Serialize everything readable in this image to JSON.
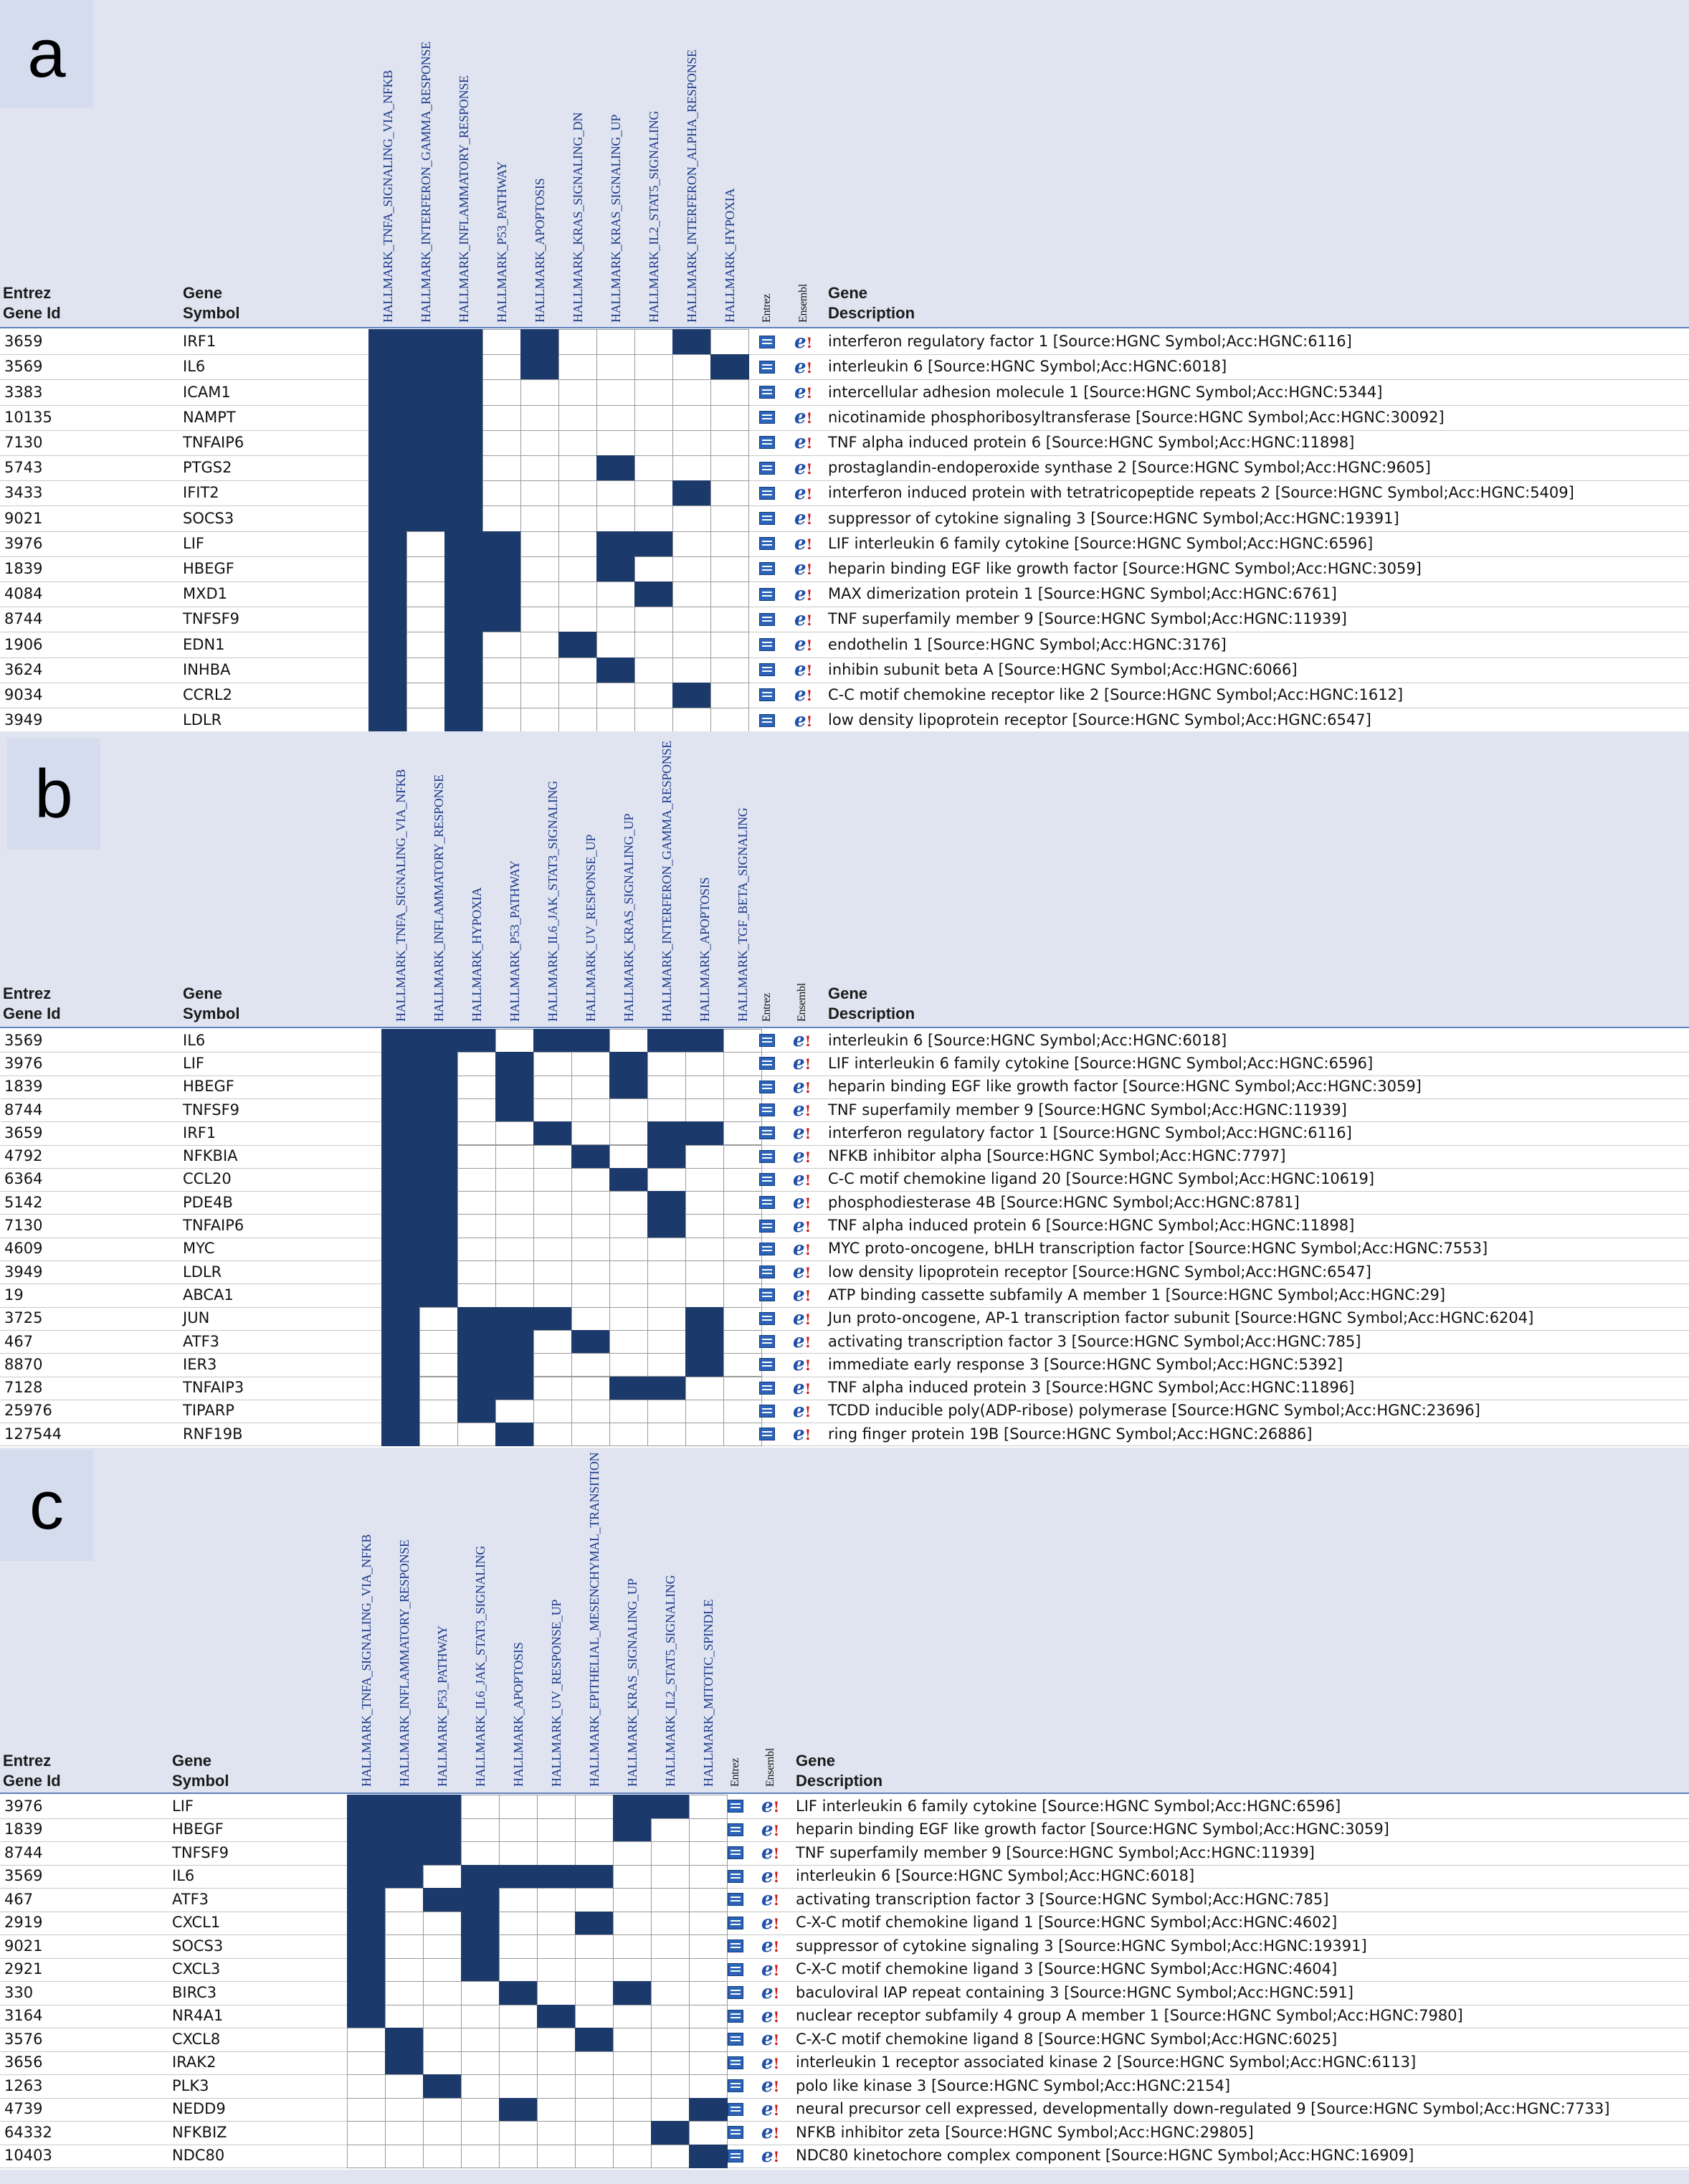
{
  "headers": {
    "entrez_gene_id": [
      "Entrez",
      "Gene Id"
    ],
    "gene_symbol": [
      "Gene",
      "Symbol"
    ],
    "gene_description": [
      "Gene",
      "Description"
    ],
    "link_cols": [
      "Entrez",
      "Ensembl"
    ]
  },
  "icons": {
    "entrez": "entrez-link-icon",
    "ensembl": "ensembl-link-icon",
    "ensembl_glyph": "e!"
  },
  "colors": {
    "filled": "#1b3a6b",
    "panel_bg": "#dfe4f0",
    "header_text": "#1f3a8a"
  },
  "panels": [
    {
      "letter": "a",
      "hallmarks": [
        "HALLMARK_TNFA_SIGNALING_VIA_NFKB",
        "HALLMARK_INTERFERON_GAMMA_RESPONSE",
        "HALLMARK_INFLAMMATORY_RESPONSE",
        "HALLMARK_P53_PATHWAY",
        "HALLMARK_APOPTOSIS",
        "HALLMARK_KRAS_SIGNALING_DN",
        "HALLMARK_KRAS_SIGNALING_UP",
        "HALLMARK_IL2_STAT5_SIGNALING",
        "HALLMARK_INTERFERON_ALPHA_RESPONSE",
        "HALLMARK_HYPOXIA"
      ],
      "rows": [
        {
          "id": "3659",
          "symbol": "IRF1",
          "desc": "interferon regulatory factor 1 [Source:HGNC Symbol;Acc:HGNC:6116]",
          "m": [
            1,
            1,
            1,
            0,
            1,
            0,
            0,
            0,
            1,
            0
          ]
        },
        {
          "id": "3569",
          "symbol": "IL6",
          "desc": "interleukin 6 [Source:HGNC Symbol;Acc:HGNC:6018]",
          "m": [
            1,
            1,
            1,
            0,
            1,
            0,
            0,
            0,
            0,
            1
          ]
        },
        {
          "id": "3383",
          "symbol": "ICAM1",
          "desc": "intercellular adhesion molecule 1 [Source:HGNC Symbol;Acc:HGNC:5344]",
          "m": [
            1,
            1,
            1,
            0,
            0,
            0,
            0,
            0,
            0,
            0
          ]
        },
        {
          "id": "10135",
          "symbol": "NAMPT",
          "desc": "nicotinamide phosphoribosyltransferase [Source:HGNC Symbol;Acc:HGNC:30092]",
          "m": [
            1,
            1,
            1,
            0,
            0,
            0,
            0,
            0,
            0,
            0
          ]
        },
        {
          "id": "7130",
          "symbol": "TNFAIP6",
          "desc": "TNF alpha induced protein 6 [Source:HGNC Symbol;Acc:HGNC:11898]",
          "m": [
            1,
            1,
            1,
            0,
            0,
            0,
            0,
            0,
            0,
            0
          ]
        },
        {
          "id": "5743",
          "symbol": "PTGS2",
          "desc": "prostaglandin-endoperoxide synthase 2 [Source:HGNC Symbol;Acc:HGNC:9605]",
          "m": [
            1,
            1,
            1,
            0,
            0,
            0,
            1,
            0,
            0,
            0
          ]
        },
        {
          "id": "3433",
          "symbol": "IFIT2",
          "desc": "interferon induced protein with tetratricopeptide repeats 2 [Source:HGNC Symbol;Acc:HGNC:5409]",
          "m": [
            1,
            1,
            1,
            0,
            0,
            0,
            0,
            0,
            1,
            0
          ]
        },
        {
          "id": "9021",
          "symbol": "SOCS3",
          "desc": "suppressor of cytokine signaling 3 [Source:HGNC Symbol;Acc:HGNC:19391]",
          "m": [
            1,
            1,
            1,
            0,
            0,
            0,
            0,
            0,
            0,
            0
          ]
        },
        {
          "id": "3976",
          "symbol": "LIF",
          "desc": "LIF interleukin 6 family cytokine [Source:HGNC Symbol;Acc:HGNC:6596]",
          "m": [
            1,
            0,
            1,
            1,
            0,
            0,
            1,
            1,
            0,
            0
          ]
        },
        {
          "id": "1839",
          "symbol": "HBEGF",
          "desc": "heparin binding EGF like growth factor [Source:HGNC Symbol;Acc:HGNC:3059]",
          "m": [
            1,
            0,
            1,
            1,
            0,
            0,
            1,
            0,
            0,
            0
          ]
        },
        {
          "id": "4084",
          "symbol": "MXD1",
          "desc": "MAX dimerization protein 1 [Source:HGNC Symbol;Acc:HGNC:6761]",
          "m": [
            1,
            0,
            1,
            1,
            0,
            0,
            0,
            1,
            0,
            0
          ]
        },
        {
          "id": "8744",
          "symbol": "TNFSF9",
          "desc": "TNF superfamily member 9 [Source:HGNC Symbol;Acc:HGNC:11939]",
          "m": [
            1,
            0,
            1,
            1,
            0,
            0,
            0,
            0,
            0,
            0
          ]
        },
        {
          "id": "1906",
          "symbol": "EDN1",
          "desc": "endothelin 1 [Source:HGNC Symbol;Acc:HGNC:3176]",
          "m": [
            1,
            0,
            1,
            0,
            0,
            1,
            0,
            0,
            0,
            0
          ]
        },
        {
          "id": "3624",
          "symbol": "INHBA",
          "desc": "inhibin subunit beta A [Source:HGNC Symbol;Acc:HGNC:6066]",
          "m": [
            1,
            0,
            1,
            0,
            0,
            0,
            1,
            0,
            0,
            0
          ]
        },
        {
          "id": "9034",
          "symbol": "CCRL2",
          "desc": "C-C motif chemokine receptor like 2 [Source:HGNC Symbol;Acc:HGNC:1612]",
          "m": [
            1,
            0,
            1,
            0,
            0,
            0,
            0,
            0,
            1,
            0
          ]
        },
        {
          "id": "3949",
          "symbol": "LDLR",
          "desc": "low density lipoprotein receptor [Source:HGNC Symbol;Acc:HGNC:6547]",
          "m": [
            1,
            0,
            1,
            0,
            0,
            0,
            0,
            0,
            0,
            0
          ]
        }
      ]
    },
    {
      "letter": "b",
      "hallmarks": [
        "HALLMARK_TNFA_SIGNALING_VIA_NFKB",
        "HALLMARK_INFLAMMATORY_RESPONSE",
        "HALLMARK_HYPOXIA",
        "HALLMARK_P53_PATHWAY",
        "HALLMARK_IL6_JAK_STAT3_SIGNALING",
        "HALLMARK_UV_RESPONSE_UP",
        "HALLMARK_KRAS_SIGNALING_UP",
        "HALLMARK_INTERFERON_GAMMA_RESPONSE",
        "HALLMARK_APOPTOSIS",
        "HALLMARK_TGF_BETA_SIGNALING"
      ],
      "rows": [
        {
          "id": "3569",
          "symbol": "IL6",
          "desc": "interleukin 6 [Source:HGNC Symbol;Acc:HGNC:6018]",
          "m": [
            1,
            1,
            1,
            0,
            1,
            1,
            0,
            1,
            1,
            0
          ]
        },
        {
          "id": "3976",
          "symbol": "LIF",
          "desc": "LIF interleukin 6 family cytokine [Source:HGNC Symbol;Acc:HGNC:6596]",
          "m": [
            1,
            1,
            0,
            1,
            0,
            0,
            1,
            0,
            0,
            0
          ]
        },
        {
          "id": "1839",
          "symbol": "HBEGF",
          "desc": "heparin binding EGF like growth factor [Source:HGNC Symbol;Acc:HGNC:3059]",
          "m": [
            1,
            1,
            0,
            1,
            0,
            0,
            1,
            0,
            0,
            0
          ]
        },
        {
          "id": "8744",
          "symbol": "TNFSF9",
          "desc": "TNF superfamily member 9 [Source:HGNC Symbol;Acc:HGNC:11939]",
          "m": [
            1,
            1,
            0,
            1,
            0,
            0,
            0,
            0,
            0,
            0
          ]
        },
        {
          "id": "3659",
          "symbol": "IRF1",
          "desc": "interferon regulatory factor 1 [Source:HGNC Symbol;Acc:HGNC:6116]",
          "m": [
            1,
            1,
            0,
            0,
            1,
            0,
            0,
            1,
            1,
            0
          ]
        },
        {
          "id": "4792",
          "symbol": "NFKBIA",
          "desc": "NFKB inhibitor alpha [Source:HGNC Symbol;Acc:HGNC:7797]",
          "m": [
            1,
            1,
            0,
            0,
            0,
            1,
            0,
            1,
            0,
            0
          ]
        },
        {
          "id": "6364",
          "symbol": "CCL20",
          "desc": "C-C motif chemokine ligand 20 [Source:HGNC Symbol;Acc:HGNC:10619]",
          "m": [
            1,
            1,
            0,
            0,
            0,
            0,
            1,
            0,
            0,
            0
          ]
        },
        {
          "id": "5142",
          "symbol": "PDE4B",
          "desc": "phosphodiesterase 4B [Source:HGNC Symbol;Acc:HGNC:8781]",
          "m": [
            1,
            1,
            0,
            0,
            0,
            0,
            0,
            1,
            0,
            0
          ]
        },
        {
          "id": "7130",
          "symbol": "TNFAIP6",
          "desc": "TNF alpha induced protein 6 [Source:HGNC Symbol;Acc:HGNC:11898]",
          "m": [
            1,
            1,
            0,
            0,
            0,
            0,
            0,
            1,
            0,
            0
          ]
        },
        {
          "id": "4609",
          "symbol": "MYC",
          "desc": "MYC proto-oncogene, bHLH transcription factor [Source:HGNC Symbol;Acc:HGNC:7553]",
          "m": [
            1,
            1,
            0,
            0,
            0,
            0,
            0,
            0,
            0,
            0
          ]
        },
        {
          "id": "3949",
          "symbol": "LDLR",
          "desc": "low density lipoprotein receptor [Source:HGNC Symbol;Acc:HGNC:6547]",
          "m": [
            1,
            1,
            0,
            0,
            0,
            0,
            0,
            0,
            0,
            0
          ]
        },
        {
          "id": "19",
          "symbol": "ABCA1",
          "desc": "ATP binding cassette subfamily A member 1 [Source:HGNC Symbol;Acc:HGNC:29]",
          "m": [
            1,
            1,
            0,
            0,
            0,
            0,
            0,
            0,
            0,
            0
          ]
        },
        {
          "id": "3725",
          "symbol": "JUN",
          "desc": "Jun proto-oncogene, AP-1 transcription factor subunit [Source:HGNC Symbol;Acc:HGNC:6204]",
          "m": [
            1,
            0,
            1,
            1,
            1,
            0,
            0,
            0,
            1,
            0
          ]
        },
        {
          "id": "467",
          "symbol": "ATF3",
          "desc": "activating transcription factor 3 [Source:HGNC Symbol;Acc:HGNC:785]",
          "m": [
            1,
            0,
            1,
            1,
            0,
            1,
            0,
            0,
            1,
            0
          ]
        },
        {
          "id": "8870",
          "symbol": "IER3",
          "desc": "immediate early response 3 [Source:HGNC Symbol;Acc:HGNC:5392]",
          "m": [
            1,
            0,
            1,
            1,
            0,
            0,
            0,
            0,
            1,
            0
          ]
        },
        {
          "id": "7128",
          "symbol": "TNFAIP3",
          "desc": "TNF alpha induced protein 3 [Source:HGNC Symbol;Acc:HGNC:11896]",
          "m": [
            1,
            0,
            1,
            1,
            0,
            0,
            1,
            1,
            0,
            0
          ]
        },
        {
          "id": "25976",
          "symbol": "TIPARP",
          "desc": "TCDD inducible poly(ADP-ribose) polymerase [Source:HGNC Symbol;Acc:HGNC:23696]",
          "m": [
            1,
            0,
            1,
            0,
            0,
            0,
            0,
            0,
            0,
            0
          ]
        },
        {
          "id": "127544",
          "symbol": "RNF19B",
          "desc": "ring finger protein 19B [Source:HGNC Symbol;Acc:HGNC:26886]",
          "m": [
            1,
            0,
            0,
            1,
            0,
            0,
            0,
            0,
            0,
            0
          ]
        }
      ]
    },
    {
      "letter": "c",
      "hallmarks": [
        "HALLMARK_TNFA_SIGNALING_VIA_NFKB",
        "HALLMARK_INFLAMMATORY_RESPONSE",
        "HALLMARK_P53_PATHWAY",
        "HALLMARK_IL6_JAK_STAT3_SIGNALING",
        "HALLMARK_APOPTOSIS",
        "HALLMARK_UV_RESPONSE_UP",
        "HALLMARK_EPITHELIAL_MESENCHYMAL_TRANSITION",
        "HALLMARK_KRAS_SIGNALING_UP",
        "HALLMARK_IL2_STAT5_SIGNALING",
        "HALLMARK_MITOTIC_SPINDLE"
      ],
      "rows": [
        {
          "id": "3976",
          "symbol": "LIF",
          "desc": "LIF interleukin 6 family cytokine [Source:HGNC Symbol;Acc:HGNC:6596]",
          "m": [
            1,
            1,
            1,
            0,
            0,
            0,
            0,
            1,
            1,
            0
          ]
        },
        {
          "id": "1839",
          "symbol": "HBEGF",
          "desc": "heparin binding EGF like growth factor [Source:HGNC Symbol;Acc:HGNC:3059]",
          "m": [
            1,
            1,
            1,
            0,
            0,
            0,
            0,
            1,
            0,
            0
          ]
        },
        {
          "id": "8744",
          "symbol": "TNFSF9",
          "desc": "TNF superfamily member 9 [Source:HGNC Symbol;Acc:HGNC:11939]",
          "m": [
            1,
            1,
            1,
            0,
            0,
            0,
            0,
            0,
            0,
            0
          ]
        },
        {
          "id": "3569",
          "symbol": "IL6",
          "desc": "interleukin 6 [Source:HGNC Symbol;Acc:HGNC:6018]",
          "m": [
            1,
            1,
            0,
            1,
            1,
            1,
            1,
            0,
            0,
            0
          ]
        },
        {
          "id": "467",
          "symbol": "ATF3",
          "desc": "activating transcription factor 3 [Source:HGNC Symbol;Acc:HGNC:785]",
          "m": [
            1,
            0,
            1,
            1,
            0,
            0,
            0,
            0,
            0,
            0
          ]
        },
        {
          "id": "2919",
          "symbol": "CXCL1",
          "desc": "C-X-C motif chemokine ligand 1 [Source:HGNC Symbol;Acc:HGNC:4602]",
          "m": [
            1,
            0,
            0,
            1,
            0,
            0,
            1,
            0,
            0,
            0
          ]
        },
        {
          "id": "9021",
          "symbol": "SOCS3",
          "desc": "suppressor of cytokine signaling 3 [Source:HGNC Symbol;Acc:HGNC:19391]",
          "m": [
            1,
            0,
            0,
            1,
            0,
            0,
            0,
            0,
            0,
            0
          ]
        },
        {
          "id": "2921",
          "symbol": "CXCL3",
          "desc": "C-X-C motif chemokine ligand 3 [Source:HGNC Symbol;Acc:HGNC:4604]",
          "m": [
            1,
            0,
            0,
            1,
            0,
            0,
            0,
            0,
            0,
            0
          ]
        },
        {
          "id": "330",
          "symbol": "BIRC3",
          "desc": "baculoviral IAP repeat containing 3 [Source:HGNC Symbol;Acc:HGNC:591]",
          "m": [
            1,
            0,
            0,
            0,
            1,
            0,
            0,
            1,
            0,
            0
          ]
        },
        {
          "id": "3164",
          "symbol": "NR4A1",
          "desc": "nuclear receptor subfamily 4 group A member 1 [Source:HGNC Symbol;Acc:HGNC:7980]",
          "m": [
            1,
            0,
            0,
            0,
            0,
            1,
            0,
            0,
            0,
            0
          ]
        },
        {
          "id": "3576",
          "symbol": "CXCL8",
          "desc": "C-X-C motif chemokine ligand 8 [Source:HGNC Symbol;Acc:HGNC:6025]",
          "m": [
            0,
            1,
            0,
            0,
            0,
            0,
            1,
            0,
            0,
            0
          ]
        },
        {
          "id": "3656",
          "symbol": "IRAK2",
          "desc": "interleukin 1 receptor associated kinase 2 [Source:HGNC Symbol;Acc:HGNC:6113]",
          "m": [
            0,
            1,
            0,
            0,
            0,
            0,
            0,
            0,
            0,
            0
          ]
        },
        {
          "id": "1263",
          "symbol": "PLK3",
          "desc": "polo like kinase 3 [Source:HGNC Symbol;Acc:HGNC:2154]",
          "m": [
            0,
            0,
            1,
            0,
            0,
            0,
            0,
            0,
            0,
            0
          ]
        },
        {
          "id": "4739",
          "symbol": "NEDD9",
          "desc": "neural precursor cell expressed, developmentally down-regulated 9 [Source:HGNC Symbol;Acc:HGNC:7733]",
          "m": [
            0,
            0,
            0,
            0,
            1,
            0,
            0,
            0,
            0,
            1
          ]
        },
        {
          "id": "64332",
          "symbol": "NFKBIZ",
          "desc": "NFKB inhibitor zeta [Source:HGNC Symbol;Acc:HGNC:29805]",
          "m": [
            0,
            0,
            0,
            0,
            0,
            0,
            0,
            0,
            1,
            0
          ]
        },
        {
          "id": "10403",
          "symbol": "NDC80",
          "desc": "NDC80 kinetochore complex component [Source:HGNC Symbol;Acc:HGNC:16909]",
          "m": [
            0,
            0,
            0,
            0,
            0,
            0,
            0,
            0,
            0,
            1
          ]
        }
      ]
    }
  ]
}
